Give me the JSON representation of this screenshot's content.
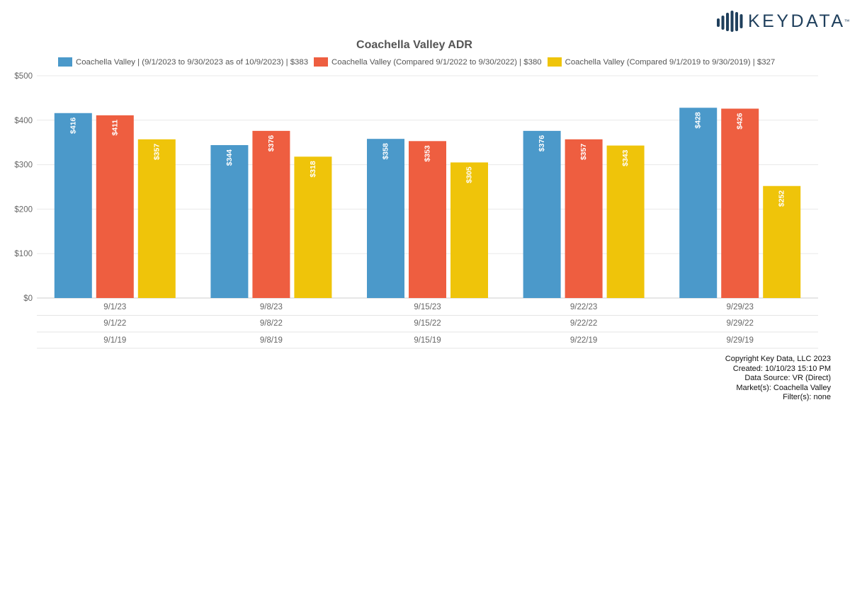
{
  "logo": {
    "text": "KEYDATA",
    "tm": "™"
  },
  "chart_data": {
    "type": "bar",
    "title": "Coachella Valley ADR",
    "xlabel": "",
    "ylabel": "",
    "y_tick_labels": [
      "$0",
      "$100",
      "$200",
      "$300",
      "$400",
      "$500"
    ],
    "ylim": [
      0,
      500
    ],
    "grid": true,
    "legend_position": "top",
    "category_rows": [
      [
        "9/1/23",
        "9/8/23",
        "9/15/23",
        "9/22/23",
        "9/29/23"
      ],
      [
        "9/1/22",
        "9/8/22",
        "9/15/22",
        "9/22/22",
        "9/29/22"
      ],
      [
        "9/1/19",
        "9/8/19",
        "9/15/19",
        "9/22/19",
        "9/29/19"
      ]
    ],
    "series": [
      {
        "name": "Coachella Valley | (9/1/2023 to 9/30/2023 as of 10/9/2023) | $383",
        "color": "#4b99ca",
        "values": [
          416,
          344,
          358,
          376,
          428
        ],
        "data_labels": [
          "$416",
          "$344",
          "$358",
          "$376",
          "$428"
        ]
      },
      {
        "name": "Coachella Valley (Compared 9/1/2022 to 9/30/2022) | $380",
        "color": "#ee5e40",
        "values": [
          411,
          376,
          353,
          357,
          426
        ],
        "data_labels": [
          "$411",
          "$376",
          "$353",
          "$357",
          "$426"
        ]
      },
      {
        "name": "Coachella Valley (Compared 9/1/2019 to 9/30/2019) | $327",
        "color": "#efc40a",
        "values": [
          357,
          318,
          305,
          343,
          252
        ],
        "data_labels": [
          "$357",
          "$318",
          "$305",
          "$343",
          "$252"
        ]
      }
    ]
  },
  "footer": {
    "copyright": "Copyright Key Data, LLC 2023",
    "created": "Created: 10/10/23 15:10 PM",
    "source": "Data Source: VR (Direct)",
    "market": "Market(s):  Coachella Valley",
    "filter": "Filter(s): none"
  }
}
